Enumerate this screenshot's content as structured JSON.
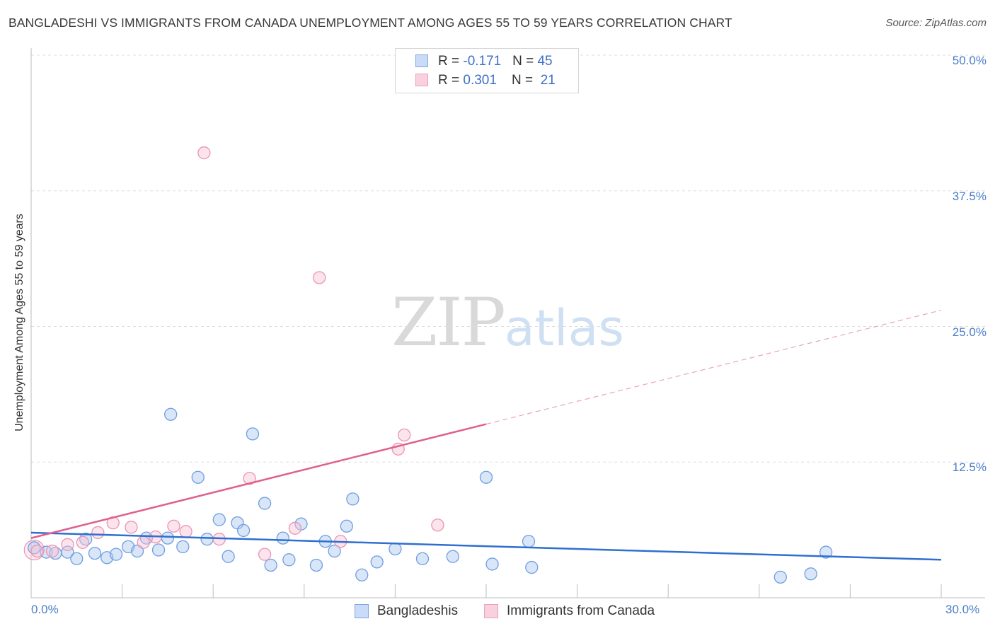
{
  "title": "BANGLADESHI VS IMMIGRANTS FROM CANADA UNEMPLOYMENT AMONG AGES 55 TO 59 YEARS CORRELATION CHART",
  "source": "Source: ZipAtlas.com",
  "watermark": {
    "zip": "ZIP",
    "atlas": "atlas"
  },
  "legend": {
    "rows": [
      {
        "r_label": "R = ",
        "r_value": "-0.171",
        "n_label": "N = ",
        "n_value": "45"
      },
      {
        "r_label": "R = ",
        "r_value": "0.301",
        "n_label": "N = ",
        "n_value": "21"
      }
    ]
  },
  "bottom_legend": [
    "Bangladeshis",
    "Immigrants from Canada"
  ],
  "chart_data": {
    "type": "scatter",
    "title": "BANGLADESHI VS IMMIGRANTS FROM CANADA UNEMPLOYMENT AMONG AGES 55 TO 59 YEARS CORRELATION CHART",
    "xlabel": "",
    "ylabel": "Unemployment Among Ages 55 to 59 years",
    "xlim": [
      0,
      30
    ],
    "ylim": [
      0,
      50
    ],
    "x_tick_labels": [
      "0.0%",
      "30.0%"
    ],
    "y_tick_labels": [
      "12.5%",
      "25.0%",
      "37.5%",
      "50.0%"
    ],
    "y_ticks": [
      12.5,
      25.0,
      37.5,
      50.0
    ],
    "grid": true,
    "legend_position": "top-center",
    "colors": {
      "Bangladeshis": "#5b8fe0",
      "Immigrants from Canada": "#ea86a8",
      "blue_line": "#2f6fd0",
      "pink_line": "#e0608f",
      "tick_text": "#4a7ec9"
    },
    "series": [
      {
        "name": "Bangladeshis",
        "r": -0.171,
        "n": 45,
        "trend": {
          "x0": 0,
          "y0": 6.0,
          "x1": 30,
          "y1": 3.5,
          "solid_to": 30
        },
        "points": [
          [
            0.1,
            4.6
          ],
          [
            0.5,
            4.2
          ],
          [
            0.8,
            4.1
          ],
          [
            1.2,
            4.2
          ],
          [
            1.5,
            3.6
          ],
          [
            1.8,
            5.4
          ],
          [
            2.1,
            4.1
          ],
          [
            2.5,
            3.7
          ],
          [
            2.8,
            4.0
          ],
          [
            3.2,
            4.7
          ],
          [
            3.5,
            4.3
          ],
          [
            3.8,
            5.5
          ],
          [
            4.2,
            4.4
          ],
          [
            4.5,
            5.5
          ],
          [
            4.6,
            16.9
          ],
          [
            5.0,
            4.7
          ],
          [
            5.5,
            11.1
          ],
          [
            5.8,
            5.4
          ],
          [
            6.2,
            7.2
          ],
          [
            6.5,
            3.8
          ],
          [
            6.8,
            6.9
          ],
          [
            7.0,
            6.2
          ],
          [
            7.3,
            15.1
          ],
          [
            7.7,
            8.7
          ],
          [
            7.9,
            3.0
          ],
          [
            8.3,
            5.5
          ],
          [
            8.5,
            3.5
          ],
          [
            8.9,
            6.8
          ],
          [
            9.4,
            3.0
          ],
          [
            9.7,
            5.2
          ],
          [
            10.0,
            4.3
          ],
          [
            10.4,
            6.6
          ],
          [
            10.6,
            9.1
          ],
          [
            10.9,
            2.1
          ],
          [
            11.4,
            3.3
          ],
          [
            12.0,
            4.5
          ],
          [
            12.9,
            3.6
          ],
          [
            13.9,
            3.8
          ],
          [
            15.0,
            11.1
          ],
          [
            15.2,
            3.1
          ],
          [
            16.4,
            5.2
          ],
          [
            16.5,
            2.8
          ],
          [
            24.7,
            1.9
          ],
          [
            25.7,
            2.2
          ],
          [
            26.2,
            4.2
          ]
        ]
      },
      {
        "name": "Immigrants from Canada",
        "r": 0.301,
        "n": 21,
        "trend": {
          "x0": 0,
          "y0": 5.5,
          "x1": 30,
          "y1": 26.5,
          "solid_to": 15.0
        },
        "points": [
          [
            0.2,
            4.3
          ],
          [
            0.7,
            4.3
          ],
          [
            1.2,
            4.9
          ],
          [
            1.7,
            5.1
          ],
          [
            2.2,
            6.0
          ],
          [
            2.7,
            6.9
          ],
          [
            3.3,
            6.5
          ],
          [
            3.7,
            5.1
          ],
          [
            4.1,
            5.6
          ],
          [
            4.7,
            6.6
          ],
          [
            5.1,
            6.1
          ],
          [
            5.7,
            41.0
          ],
          [
            6.2,
            5.4
          ],
          [
            7.2,
            11.0
          ],
          [
            7.7,
            4.0
          ],
          [
            8.7,
            6.4
          ],
          [
            9.5,
            29.5
          ],
          [
            10.2,
            5.2
          ],
          [
            12.1,
            13.7
          ],
          [
            12.3,
            15.0
          ],
          [
            13.4,
            6.7
          ]
        ]
      }
    ]
  }
}
